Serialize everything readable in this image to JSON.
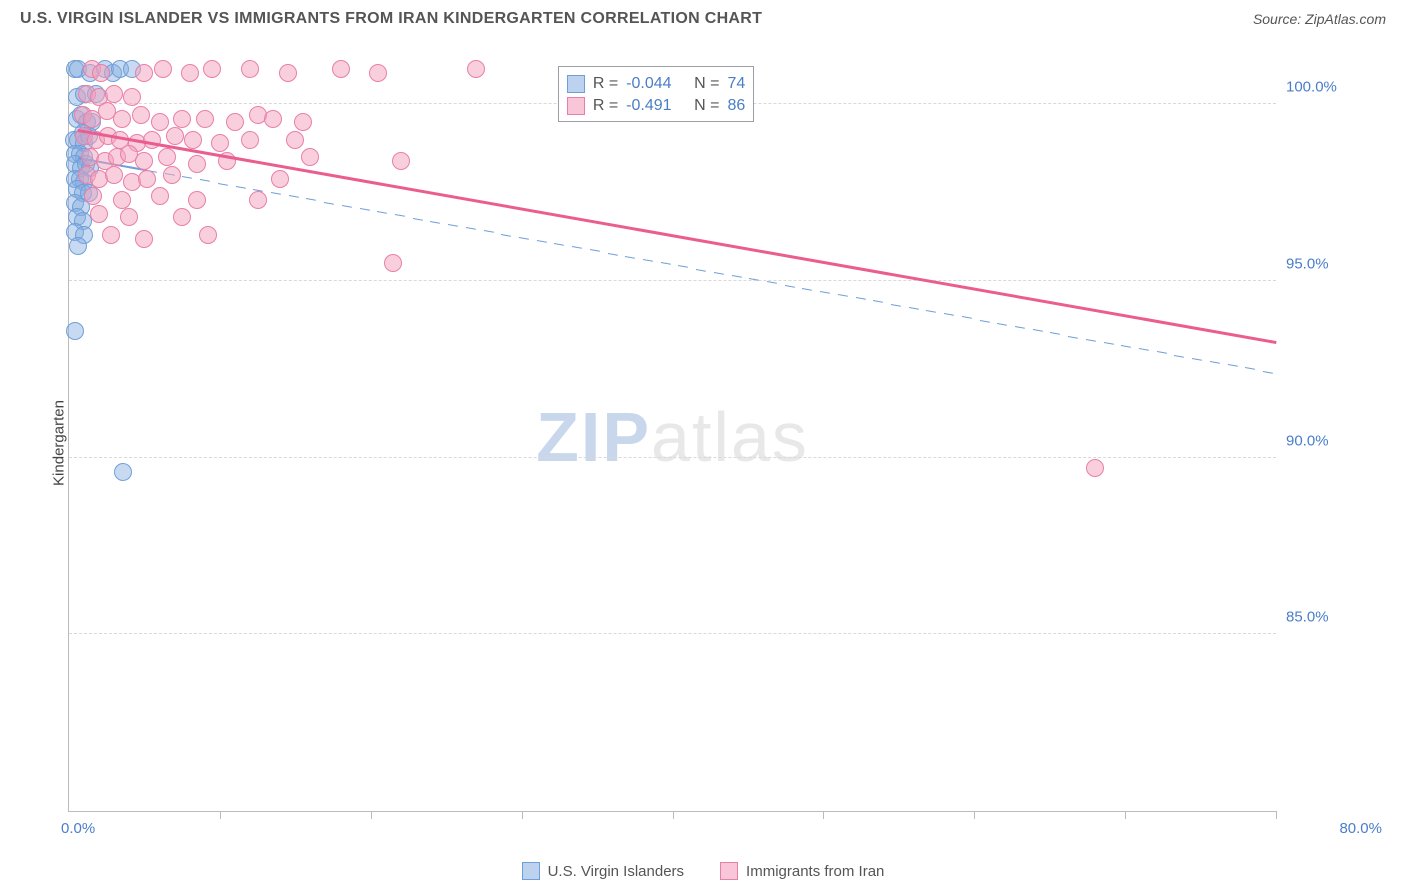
{
  "header": {
    "title": "U.S. VIRGIN ISLANDER VS IMMIGRANTS FROM IRAN KINDERGARTEN CORRELATION CHART",
    "source": "Source: ZipAtlas.com"
  },
  "watermark": {
    "part1": "ZIP",
    "part2": "atlas"
  },
  "chart": {
    "type": "scatter",
    "ylabel": "Kindergarten",
    "xlim": [
      0,
      80
    ],
    "ylim": [
      80,
      101.2
    ],
    "x_origin_label": "0.0%",
    "x_max_label": "80.0%",
    "xticks": [
      0,
      10,
      20,
      30,
      40,
      50,
      60,
      70,
      80
    ],
    "y_gridlines": [
      85.0,
      90.0,
      95.0,
      100.0
    ],
    "ytick_labels": [
      "85.0%",
      "90.0%",
      "95.0%",
      "100.0%"
    ],
    "background_color": "#ffffff",
    "grid_color": "#d9d9d9",
    "axis_color": "#bbbbbb",
    "tick_label_color": "#4a7ec9",
    "marker_radius": 9,
    "series": [
      {
        "key": "usvi",
        "label": "U.S. Virgin Islanders",
        "color_fill": "rgba(133,173,225,0.45)",
        "color_stroke": "#6f9fd8",
        "trend_style": "dashed",
        "trend_color": "#6f9fd8",
        "trend_width": 1.5,
        "trend": {
          "x1": 0.6,
          "y1": 98.5,
          "x2": 80,
          "y2": 92.4
        },
        "R": "-0.044",
        "N": "74",
        "points": [
          [
            0.4,
            101.0
          ],
          [
            0.6,
            101.0
          ],
          [
            1.4,
            100.9
          ],
          [
            2.4,
            101.0
          ],
          [
            2.9,
            100.9
          ],
          [
            3.4,
            101.0
          ],
          [
            4.2,
            101.0
          ],
          [
            0.5,
            100.2
          ],
          [
            1.0,
            100.3
          ],
          [
            1.8,
            100.3
          ],
          [
            0.5,
            99.6
          ],
          [
            0.8,
            99.7
          ],
          [
            1.2,
            99.5
          ],
          [
            1.5,
            99.5
          ],
          [
            0.9,
            99.2
          ],
          [
            0.3,
            99.0
          ],
          [
            0.6,
            99.0
          ],
          [
            1.0,
            98.9
          ],
          [
            1.3,
            99.1
          ],
          [
            0.4,
            98.6
          ],
          [
            0.7,
            98.6
          ],
          [
            1.0,
            98.5
          ],
          [
            0.4,
            98.3
          ],
          [
            0.8,
            98.2
          ],
          [
            1.1,
            98.3
          ],
          [
            1.4,
            98.2
          ],
          [
            0.4,
            97.9
          ],
          [
            0.7,
            97.9
          ],
          [
            1.0,
            97.8
          ],
          [
            0.5,
            97.6
          ],
          [
            0.9,
            97.5
          ],
          [
            1.3,
            97.5
          ],
          [
            0.4,
            97.2
          ],
          [
            0.8,
            97.1
          ],
          [
            0.5,
            96.8
          ],
          [
            0.9,
            96.7
          ],
          [
            0.4,
            96.4
          ],
          [
            1.0,
            96.3
          ],
          [
            0.6,
            96.0
          ],
          [
            0.4,
            93.6
          ],
          [
            3.6,
            89.6
          ]
        ]
      },
      {
        "key": "iran",
        "label": "Immigrants from Iran",
        "color_fill": "rgba(244,160,188,0.50)",
        "color_stroke": "#e97fa8",
        "trend_style": "solid",
        "trend_color": "#ea5d8e",
        "trend_width": 2.5,
        "trend": {
          "x1": 0.6,
          "y1": 99.3,
          "x2": 80,
          "y2": 93.3
        },
        "R": "-0.491",
        "N": "86",
        "points": [
          [
            1.5,
            101.0
          ],
          [
            2.1,
            100.9
          ],
          [
            5.0,
            100.9
          ],
          [
            6.2,
            101.0
          ],
          [
            8.0,
            100.9
          ],
          [
            9.5,
            101.0
          ],
          [
            12.0,
            101.0
          ],
          [
            14.5,
            100.9
          ],
          [
            18.0,
            101.0
          ],
          [
            20.5,
            100.9
          ],
          [
            27.0,
            101.0
          ],
          [
            1.2,
            100.3
          ],
          [
            2.0,
            100.2
          ],
          [
            3.0,
            100.3
          ],
          [
            4.2,
            100.2
          ],
          [
            0.9,
            99.7
          ],
          [
            1.5,
            99.6
          ],
          [
            2.5,
            99.8
          ],
          [
            3.5,
            99.6
          ],
          [
            4.8,
            99.7
          ],
          [
            6.0,
            99.5
          ],
          [
            7.5,
            99.6
          ],
          [
            9.0,
            99.6
          ],
          [
            11.0,
            99.5
          ],
          [
            12.5,
            99.7
          ],
          [
            13.5,
            99.6
          ],
          [
            15.5,
            99.5
          ],
          [
            1.0,
            99.1
          ],
          [
            1.8,
            99.0
          ],
          [
            2.6,
            99.1
          ],
          [
            3.4,
            99.0
          ],
          [
            4.5,
            98.9
          ],
          [
            5.5,
            99.0
          ],
          [
            7.0,
            99.1
          ],
          [
            8.2,
            99.0
          ],
          [
            10.0,
            98.9
          ],
          [
            12.0,
            99.0
          ],
          [
            15.0,
            99.0
          ],
          [
            1.4,
            98.5
          ],
          [
            2.4,
            98.4
          ],
          [
            3.2,
            98.5
          ],
          [
            4.0,
            98.6
          ],
          [
            5.0,
            98.4
          ],
          [
            6.5,
            98.5
          ],
          [
            8.5,
            98.3
          ],
          [
            10.5,
            98.4
          ],
          [
            16.0,
            98.5
          ],
          [
            22.0,
            98.4
          ],
          [
            1.2,
            98.0
          ],
          [
            2.0,
            97.9
          ],
          [
            3.0,
            98.0
          ],
          [
            4.2,
            97.8
          ],
          [
            5.2,
            97.9
          ],
          [
            6.8,
            98.0
          ],
          [
            14.0,
            97.9
          ],
          [
            1.6,
            97.4
          ],
          [
            3.5,
            97.3
          ],
          [
            6.0,
            97.4
          ],
          [
            8.5,
            97.3
          ],
          [
            12.5,
            97.3
          ],
          [
            2.0,
            96.9
          ],
          [
            4.0,
            96.8
          ],
          [
            7.5,
            96.8
          ],
          [
            2.8,
            96.3
          ],
          [
            5.0,
            96.2
          ],
          [
            9.2,
            96.3
          ],
          [
            21.5,
            95.5
          ],
          [
            68.0,
            89.7
          ]
        ]
      }
    ],
    "stats_box": {
      "left_pct": 40.5,
      "bottom_pct": 92.0,
      "rows": [
        {
          "swatch_fill": "rgba(133,173,225,0.55)",
          "swatch_stroke": "#6f9fd8",
          "R_label": "R =",
          "R": "-0.044",
          "N_label": "N =",
          "N": "74"
        },
        {
          "swatch_fill": "rgba(244,160,188,0.60)",
          "swatch_stroke": "#e97fa8",
          "R_label": "R =",
          "R": "-0.491",
          "N_label": "N =",
          "N": "86"
        }
      ]
    },
    "legend": [
      {
        "fill": "rgba(133,173,225,0.55)",
        "stroke": "#6f9fd8",
        "label": "U.S. Virgin Islanders"
      },
      {
        "fill": "rgba(244,160,188,0.60)",
        "stroke": "#e97fa8",
        "label": "Immigrants from Iran"
      }
    ]
  }
}
